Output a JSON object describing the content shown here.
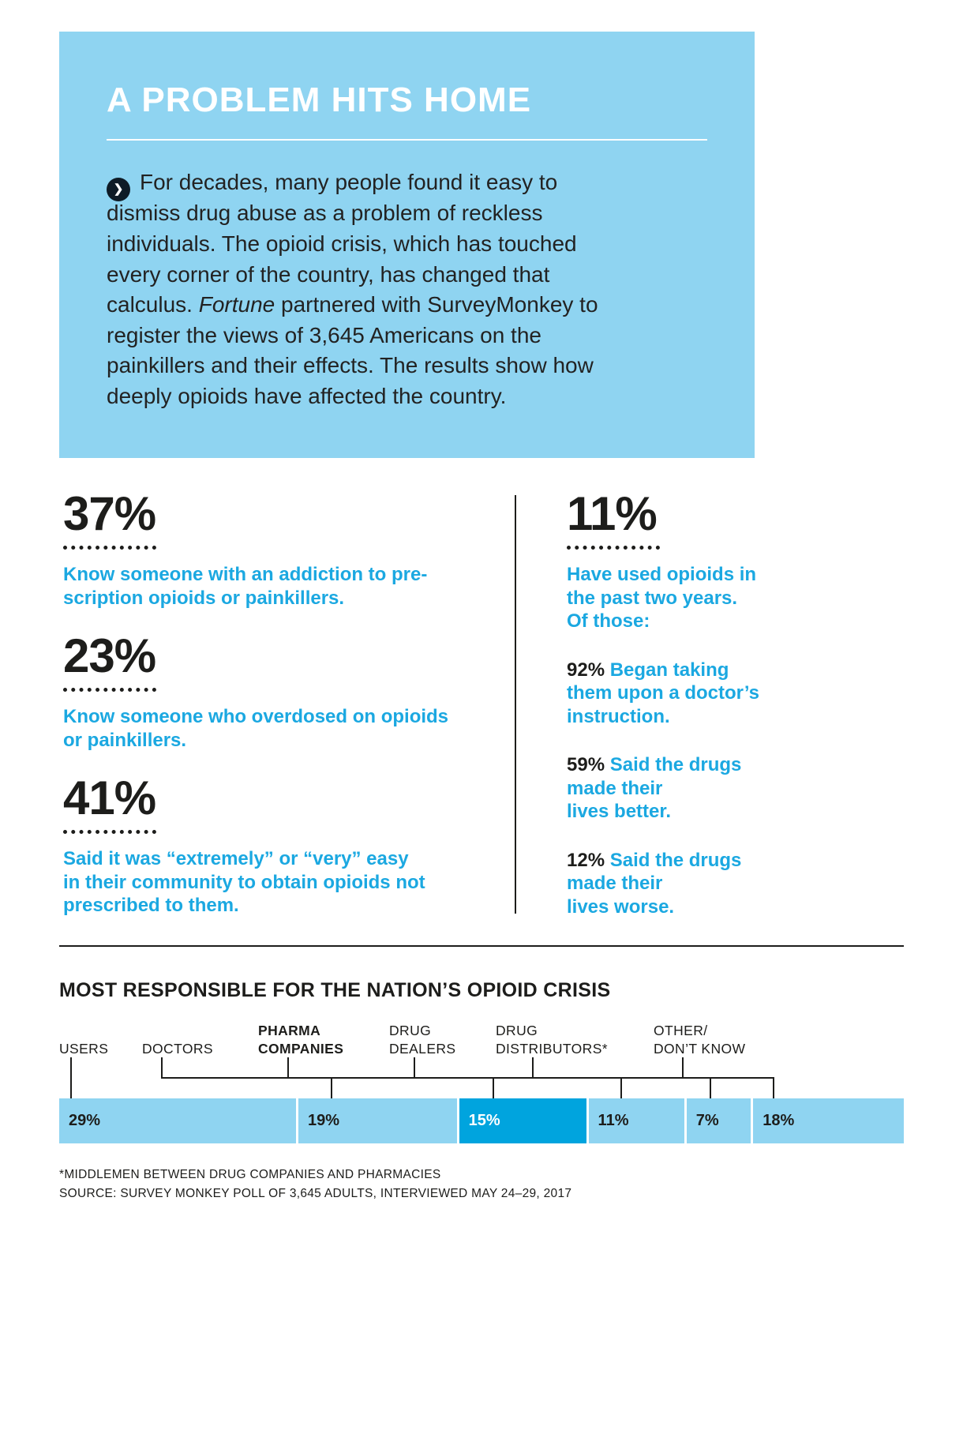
{
  "colors": {
    "hero_bg": "#8FD4F1",
    "accent_blue": "#1BA8E1",
    "bar_light": "#8FD4F1",
    "bar_highlight": "#00A4DE",
    "ink": "#1D1D1B"
  },
  "hero": {
    "title": "A PROBLEM HITS HOME",
    "bullet_glyph": "❯",
    "body_prefix": "For decades, many people found it easy to dismiss drug abuse as a problem of reckless individuals. The opioid crisis, which has touched every corner of the country, has changed that calculus. ",
    "body_italic": "Fortune",
    "body_suffix": " partnered with SurveyMonkey to register the views of 3,645 Americans on the painkillers and their effects. The results show how deeply opioids have affected the country."
  },
  "stats_left": [
    {
      "value": "37%",
      "label": "Know someone with an addiction to pre-\nscription opioids or painkillers."
    },
    {
      "value": "23%",
      "label": "Know someone who overdosed on opioids\nor painkillers."
    },
    {
      "value": "41%",
      "label": "Said it was “extremely” or “very” easy\nin their community to obtain opioids not\nprescribed to them."
    }
  ],
  "stats_right": {
    "value": "11%",
    "label": "Have used opioids in\nthe past two years.\nOf those:",
    "sub_stats": [
      {
        "value": "92%",
        "label": "Began taking\nthem upon a doctor’s\ninstruction."
      },
      {
        "value": "59%",
        "label": "Said the drugs\nmade their\nlives better."
      },
      {
        "value": "12%",
        "label": "Said the drugs\nmade their\nlives worse."
      }
    ]
  },
  "chart_data": {
    "type": "bar",
    "layout": "horizontal_stacked_percent",
    "title": "MOST RESPONSIBLE FOR THE NATION’S OPIOID CRISIS",
    "categories": [
      "USERS",
      "DOCTORS",
      "PHARMA\nCOMPANIES",
      "DRUG\nDEALERS",
      "DRUG\nDISTRIBUTORS*",
      "OTHER/\nDON’T KNOW"
    ],
    "values": [
      29,
      19,
      15,
      11,
      7,
      18
    ],
    "value_suffix": "%",
    "highlight_index": 2,
    "footnotes": [
      "*MIDDLEMEN BETWEEN DRUG COMPANIES AND PHARMACIES",
      "SOURCE: SURVEY MONKEY POLL OF 3,645 ADULTS, INTERVIEWED MAY 24–29, 2017"
    ]
  }
}
